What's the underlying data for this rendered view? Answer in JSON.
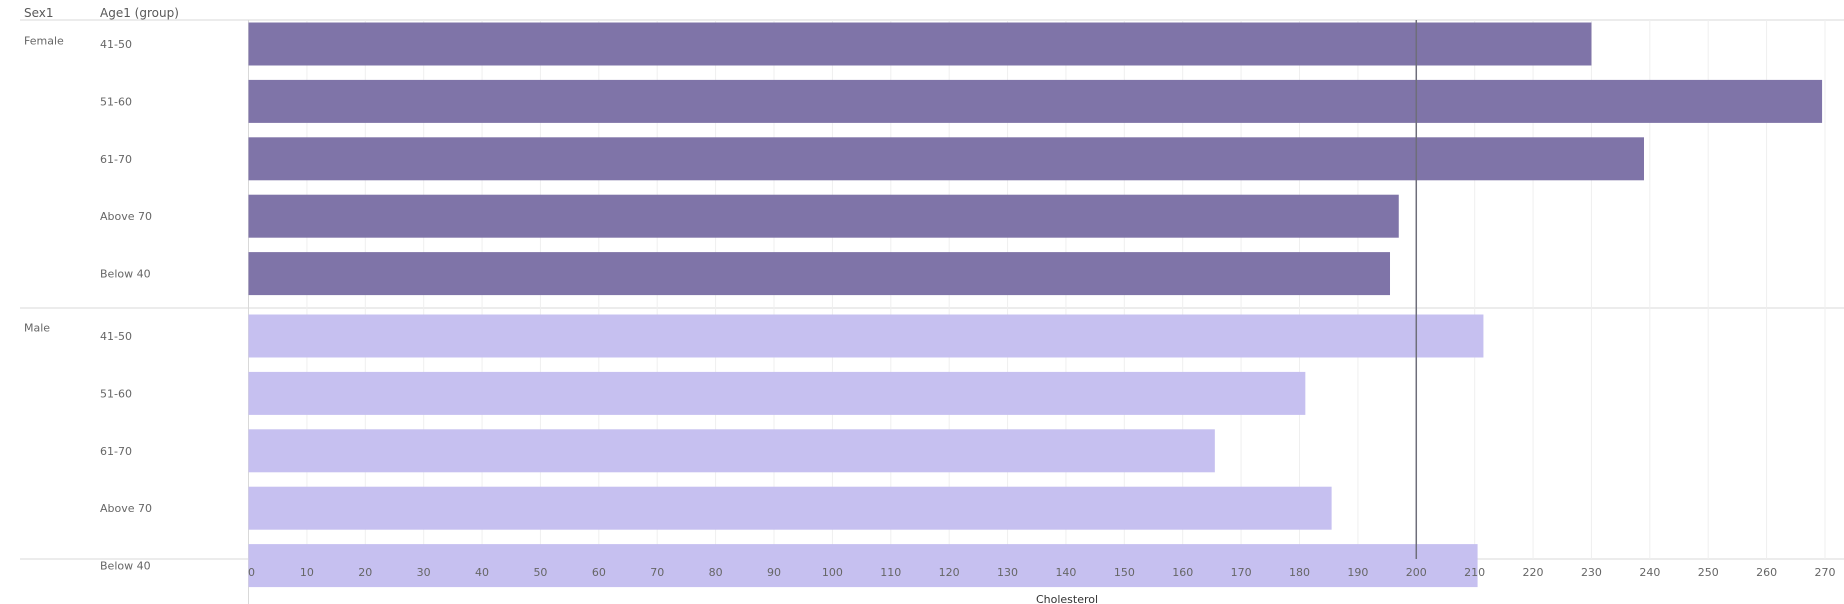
{
  "chart_data": {
    "type": "bar",
    "orientation": "horizontal",
    "headers": {
      "dim1": "Sex1",
      "dim2": "Age1 (group)"
    },
    "groups": [
      {
        "name": "Female",
        "color": "#7f74a8",
        "categories": [
          "41-50",
          "51-60",
          "61-70",
          "Above 70",
          "Below 40"
        ],
        "values": [
          230,
          269.5,
          239,
          197,
          195.5
        ]
      },
      {
        "name": "Male",
        "color": "#c6c0f0",
        "categories": [
          "41-50",
          "51-60",
          "61-70",
          "Above 70",
          "Below 40"
        ],
        "values": [
          211.5,
          181,
          165.5,
          185.5,
          210.5
        ]
      }
    ],
    "xlabel": "Cholesterol",
    "xlim": [
      0,
      275
    ],
    "xticks": [
      0,
      10,
      20,
      30,
      40,
      50,
      60,
      70,
      80,
      90,
      100,
      110,
      120,
      130,
      140,
      150,
      160,
      170,
      180,
      190,
      200,
      210,
      220,
      230,
      240,
      250,
      260,
      270
    ],
    "reference_line": 200,
    "grid": true
  }
}
